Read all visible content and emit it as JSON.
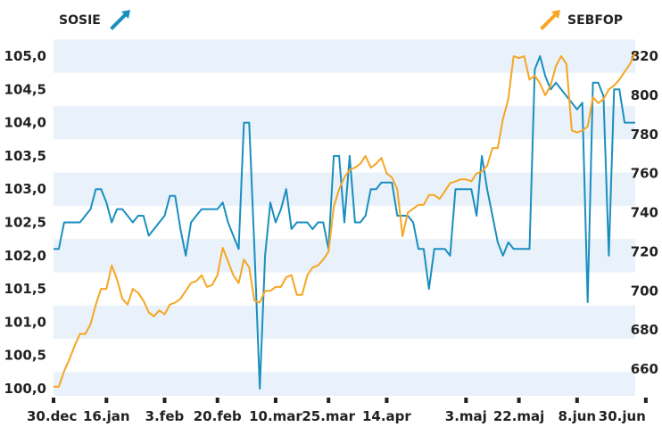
{
  "chart_data": {
    "type": "line",
    "x_labels": [
      "30.dec",
      "16.jan",
      "3.feb",
      "20.feb",
      "10.mar",
      "25.mar",
      "14.apr",
      "3.maj",
      "22.maj",
      "8.jun",
      "30.jun"
    ],
    "x_label_index": [
      0,
      10,
      21,
      31,
      42,
      52,
      63,
      78,
      88,
      99,
      112
    ],
    "left_axis": {
      "min": 100.0,
      "max": 105.0,
      "ticks": [
        "100,0",
        "100,5",
        "101,0",
        "101,5",
        "102,0",
        "102,5",
        "103,0",
        "103,5",
        "104,0",
        "104,5",
        "105,0"
      ]
    },
    "right_axis": {
      "min": 650,
      "max": 820,
      "ticks": [
        "660",
        "680",
        "700",
        "720",
        "740",
        "760",
        "780",
        "800",
        "820"
      ]
    },
    "grid": "horizontal-bands",
    "series": [
      {
        "name": "SOSIE",
        "axis": "left",
        "color": "#1a8fbf",
        "legend_position": "top-left",
        "values": [
          102.1,
          102.1,
          102.5,
          102.5,
          102.5,
          102.5,
          102.6,
          102.7,
          103.0,
          103.0,
          102.8,
          102.5,
          102.7,
          102.7,
          102.6,
          102.5,
          102.6,
          102.6,
          102.3,
          102.4,
          102.5,
          102.6,
          102.9,
          102.9,
          102.4,
          102.0,
          102.5,
          102.6,
          102.7,
          102.7,
          102.7,
          102.7,
          102.8,
          102.5,
          102.3,
          102.1,
          104.0,
          104.0,
          102.1,
          100.0,
          102.0,
          102.8,
          102.5,
          102.7,
          103.0,
          102.4,
          102.5,
          102.5,
          102.5,
          102.4,
          102.5,
          102.5,
          102.1,
          103.5,
          103.5,
          102.5,
          103.5,
          102.5,
          102.5,
          102.6,
          103.0,
          103.0,
          103.1,
          103.1,
          103.1,
          102.6,
          102.6,
          102.6,
          102.5,
          102.1,
          102.1,
          101.5,
          102.1,
          102.1,
          102.1,
          102.0,
          103.0,
          103.0,
          103.0,
          103.0,
          102.6,
          103.5,
          103.0,
          102.6,
          102.2,
          102.0,
          102.2,
          102.1,
          102.1,
          102.1,
          102.1,
          104.8,
          105.0,
          104.7,
          104.5,
          104.6,
          104.5,
          104.4,
          104.3,
          104.2,
          104.3,
          101.3,
          104.6,
          104.6,
          104.4,
          102.0,
          104.5,
          104.5,
          104.0,
          104.0,
          104.0
        ]
      },
      {
        "name": "SEBFOP",
        "axis": "right",
        "color": "#f5a623",
        "legend_position": "top-right",
        "values": [
          651,
          651,
          659,
          665,
          672,
          678,
          678,
          683,
          693,
          701,
          701,
          713,
          706,
          696,
          693,
          701,
          699,
          695,
          689,
          687,
          690,
          688,
          693,
          694,
          696,
          700,
          704,
          705,
          708,
          702,
          703,
          708,
          722,
          715,
          708,
          704,
          716,
          712,
          695,
          694,
          700,
          700,
          702,
          702,
          707,
          708,
          698,
          698,
          708,
          712,
          713,
          716,
          720,
          743,
          752,
          758,
          762,
          763,
          765,
          769,
          763,
          765,
          768,
          760,
          758,
          752,
          728,
          740,
          742,
          744,
          744,
          749,
          749,
          747,
          751,
          755,
          756,
          757,
          757,
          756,
          760,
          761,
          764,
          773,
          773,
          788,
          798,
          820,
          819,
          820,
          808,
          810,
          806,
          800,
          805,
          815,
          820,
          816,
          782,
          781,
          782,
          784,
          799,
          796,
          798,
          803,
          805,
          808,
          812,
          816,
          822
        ]
      }
    ]
  }
}
